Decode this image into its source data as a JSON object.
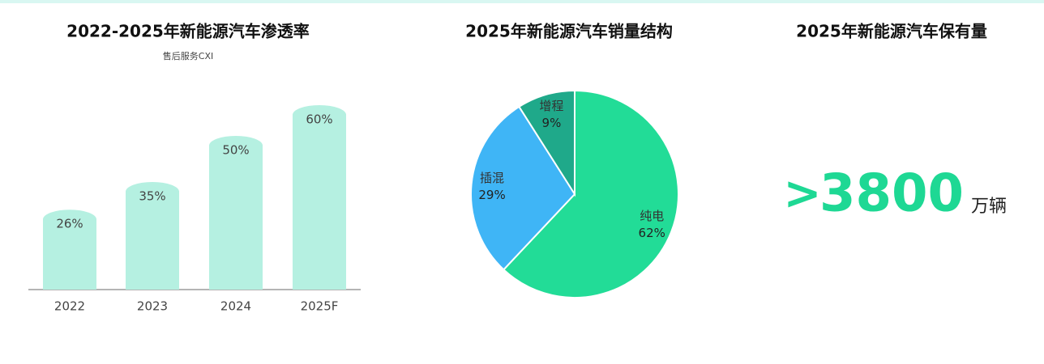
{
  "chart_data": [
    {
      "type": "bar",
      "title": "2022-2025年新能源汽车渗透率",
      "subtitle": "售后服务CXI",
      "categories": [
        "2022",
        "2023",
        "2024",
        "2025F"
      ],
      "values": [
        26,
        35,
        50,
        60
      ],
      "value_labels": [
        "26%",
        "35%",
        "50%",
        "60%"
      ],
      "color": "#b5f0e1"
    },
    {
      "type": "pie",
      "title": "2025年新能源汽车销量结构",
      "categories": [
        "纯电",
        "插混",
        "增程"
      ],
      "values": [
        62,
        29,
        9
      ],
      "value_labels": [
        "62%",
        "29%",
        "9%"
      ],
      "colors": [
        "#22dc97",
        "#3fb5f6",
        "#1fa98a"
      ]
    }
  ],
  "stat": {
    "title": "2025年新能源汽车保有量",
    "prefix": ">",
    "value": 3800,
    "unit": "万辆"
  }
}
